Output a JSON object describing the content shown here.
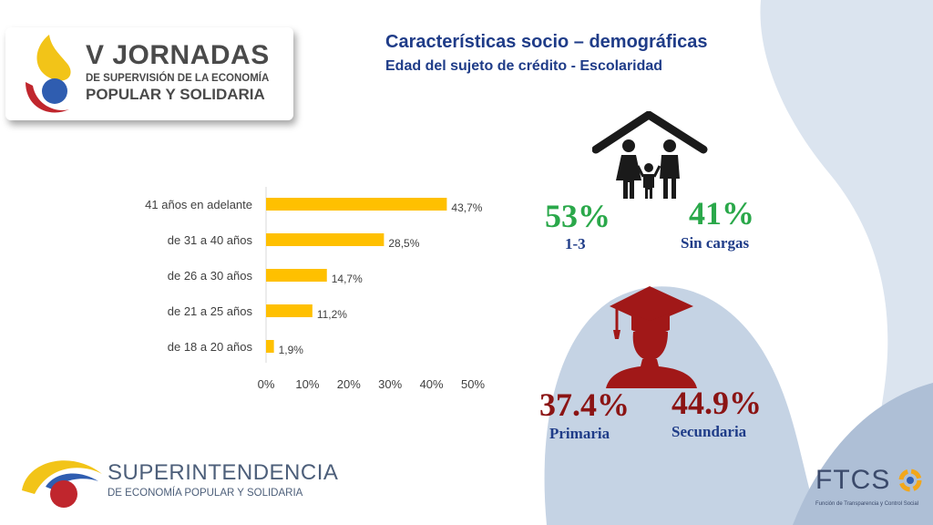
{
  "logo": {
    "line1": "V JORNADAS",
    "line2": "DE SUPERVISIÓN DE LA ECONOMÍA",
    "line3": "POPULAR Y SOLIDARIA"
  },
  "header": {
    "title": "Características socio – demográficas",
    "subtitle": "Edad del sujeto de crédito - Escolaridad"
  },
  "chart_data": {
    "type": "bar",
    "orientation": "horizontal",
    "categories": [
      "41 años en adelante",
      "de 31 a 40 años",
      "de 26 a 30 años",
      "de 21 a 25 años",
      "de 18 a 20 años"
    ],
    "values": [
      43.7,
      28.5,
      14.7,
      11.2,
      1.9
    ],
    "value_labels": [
      "43,7%",
      "28,5%",
      "14,7%",
      "11,2%",
      "1,9%"
    ],
    "xlim": [
      0,
      50
    ],
    "xticks": [
      "0%",
      "10%",
      "20%",
      "30%",
      "40%",
      "50%"
    ],
    "bar_color": "#ffc000",
    "grid": false
  },
  "stats": {
    "children": {
      "value": "53%",
      "label": "1-3"
    },
    "no_dependents": {
      "value": "41%",
      "label": "Sin cargas"
    },
    "primary": {
      "value": "37.4%",
      "label": "Primaria"
    },
    "secondary": {
      "value": "44.9%",
      "label": "Secundaria"
    }
  },
  "colors": {
    "title_blue": "#1f3c88",
    "stat_green": "#2aa84a",
    "stat_red": "#8b1414",
    "bg_shape": "#c5d3e4"
  },
  "footer": {
    "org_line1": "SUPERINTENDENCIA",
    "org_line2": "DE ECONOMÍA POPULAR Y SOLIDARIA",
    "ftcs_name": "FTCS",
    "ftcs_sub": "Función de Transparencia y Control Social"
  }
}
